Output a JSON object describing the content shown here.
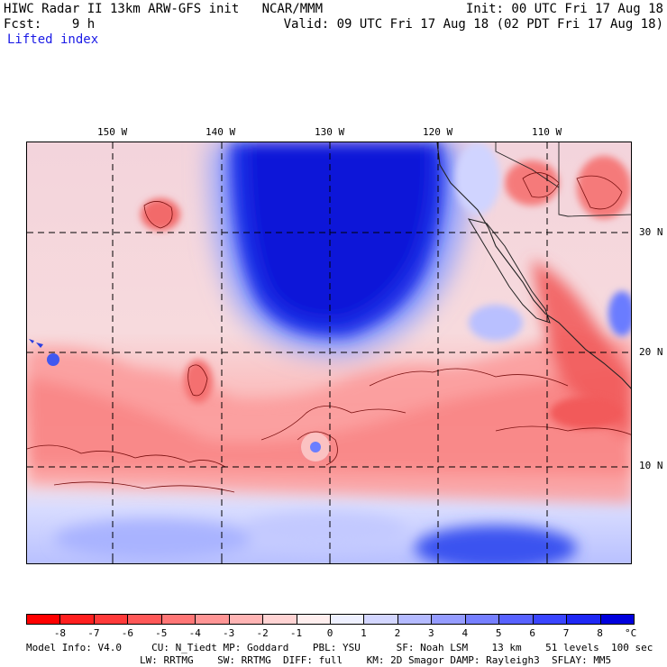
{
  "header": {
    "line1_left": "HIWC Radar II 13km ARW-GFS init   NCAR/MMM",
    "line1_right": "Init: 00 UTC Fri 17 Aug 18",
    "line2_left": "Fcst:    9 h",
    "line2_right": "Valid: 09 UTC Fri 17 Aug 18 (02 PDT Fri 17 Aug 18)",
    "field": "Lifted index"
  },
  "map": {
    "lon_labels": [
      "150 W",
      "140 W",
      "130 W",
      "120 W",
      "110 W"
    ],
    "lat_labels": [
      "30 N",
      "20 N",
      "10 N"
    ]
  },
  "colorbar": {
    "labels": [
      "-8",
      "-7",
      "-6",
      "-5",
      "-4",
      "-3",
      "-2",
      "-1",
      "0",
      "1",
      "2",
      "3",
      "4",
      "5",
      "6",
      "7",
      "8"
    ],
    "unit": "°C",
    "colors": [
      "#ff0000",
      "#ff1f1f",
      "#ff3a3a",
      "#ff5858",
      "#ff7676",
      "#ff9595",
      "#ffb4b4",
      "#ffd3d3",
      "#ffeeee",
      "#eef0ff",
      "#d3d6ff",
      "#b4baff",
      "#959cff",
      "#767fff",
      "#5862ff",
      "#3a45ff",
      "#1f28f5",
      "#0000dd"
    ]
  },
  "model_info": {
    "line1": "Model Info: V4.0     CU: N_Tiedt MP: Goddard    PBL: YSU      SF: Noah LSM    13 km    51 levels  100 sec",
    "line2": "LW: RRTMG    SW: RRTMG  DIFF: full    KM: 2D Smagor DAMP: Rayleigh3  SFLAY: MM5"
  }
}
